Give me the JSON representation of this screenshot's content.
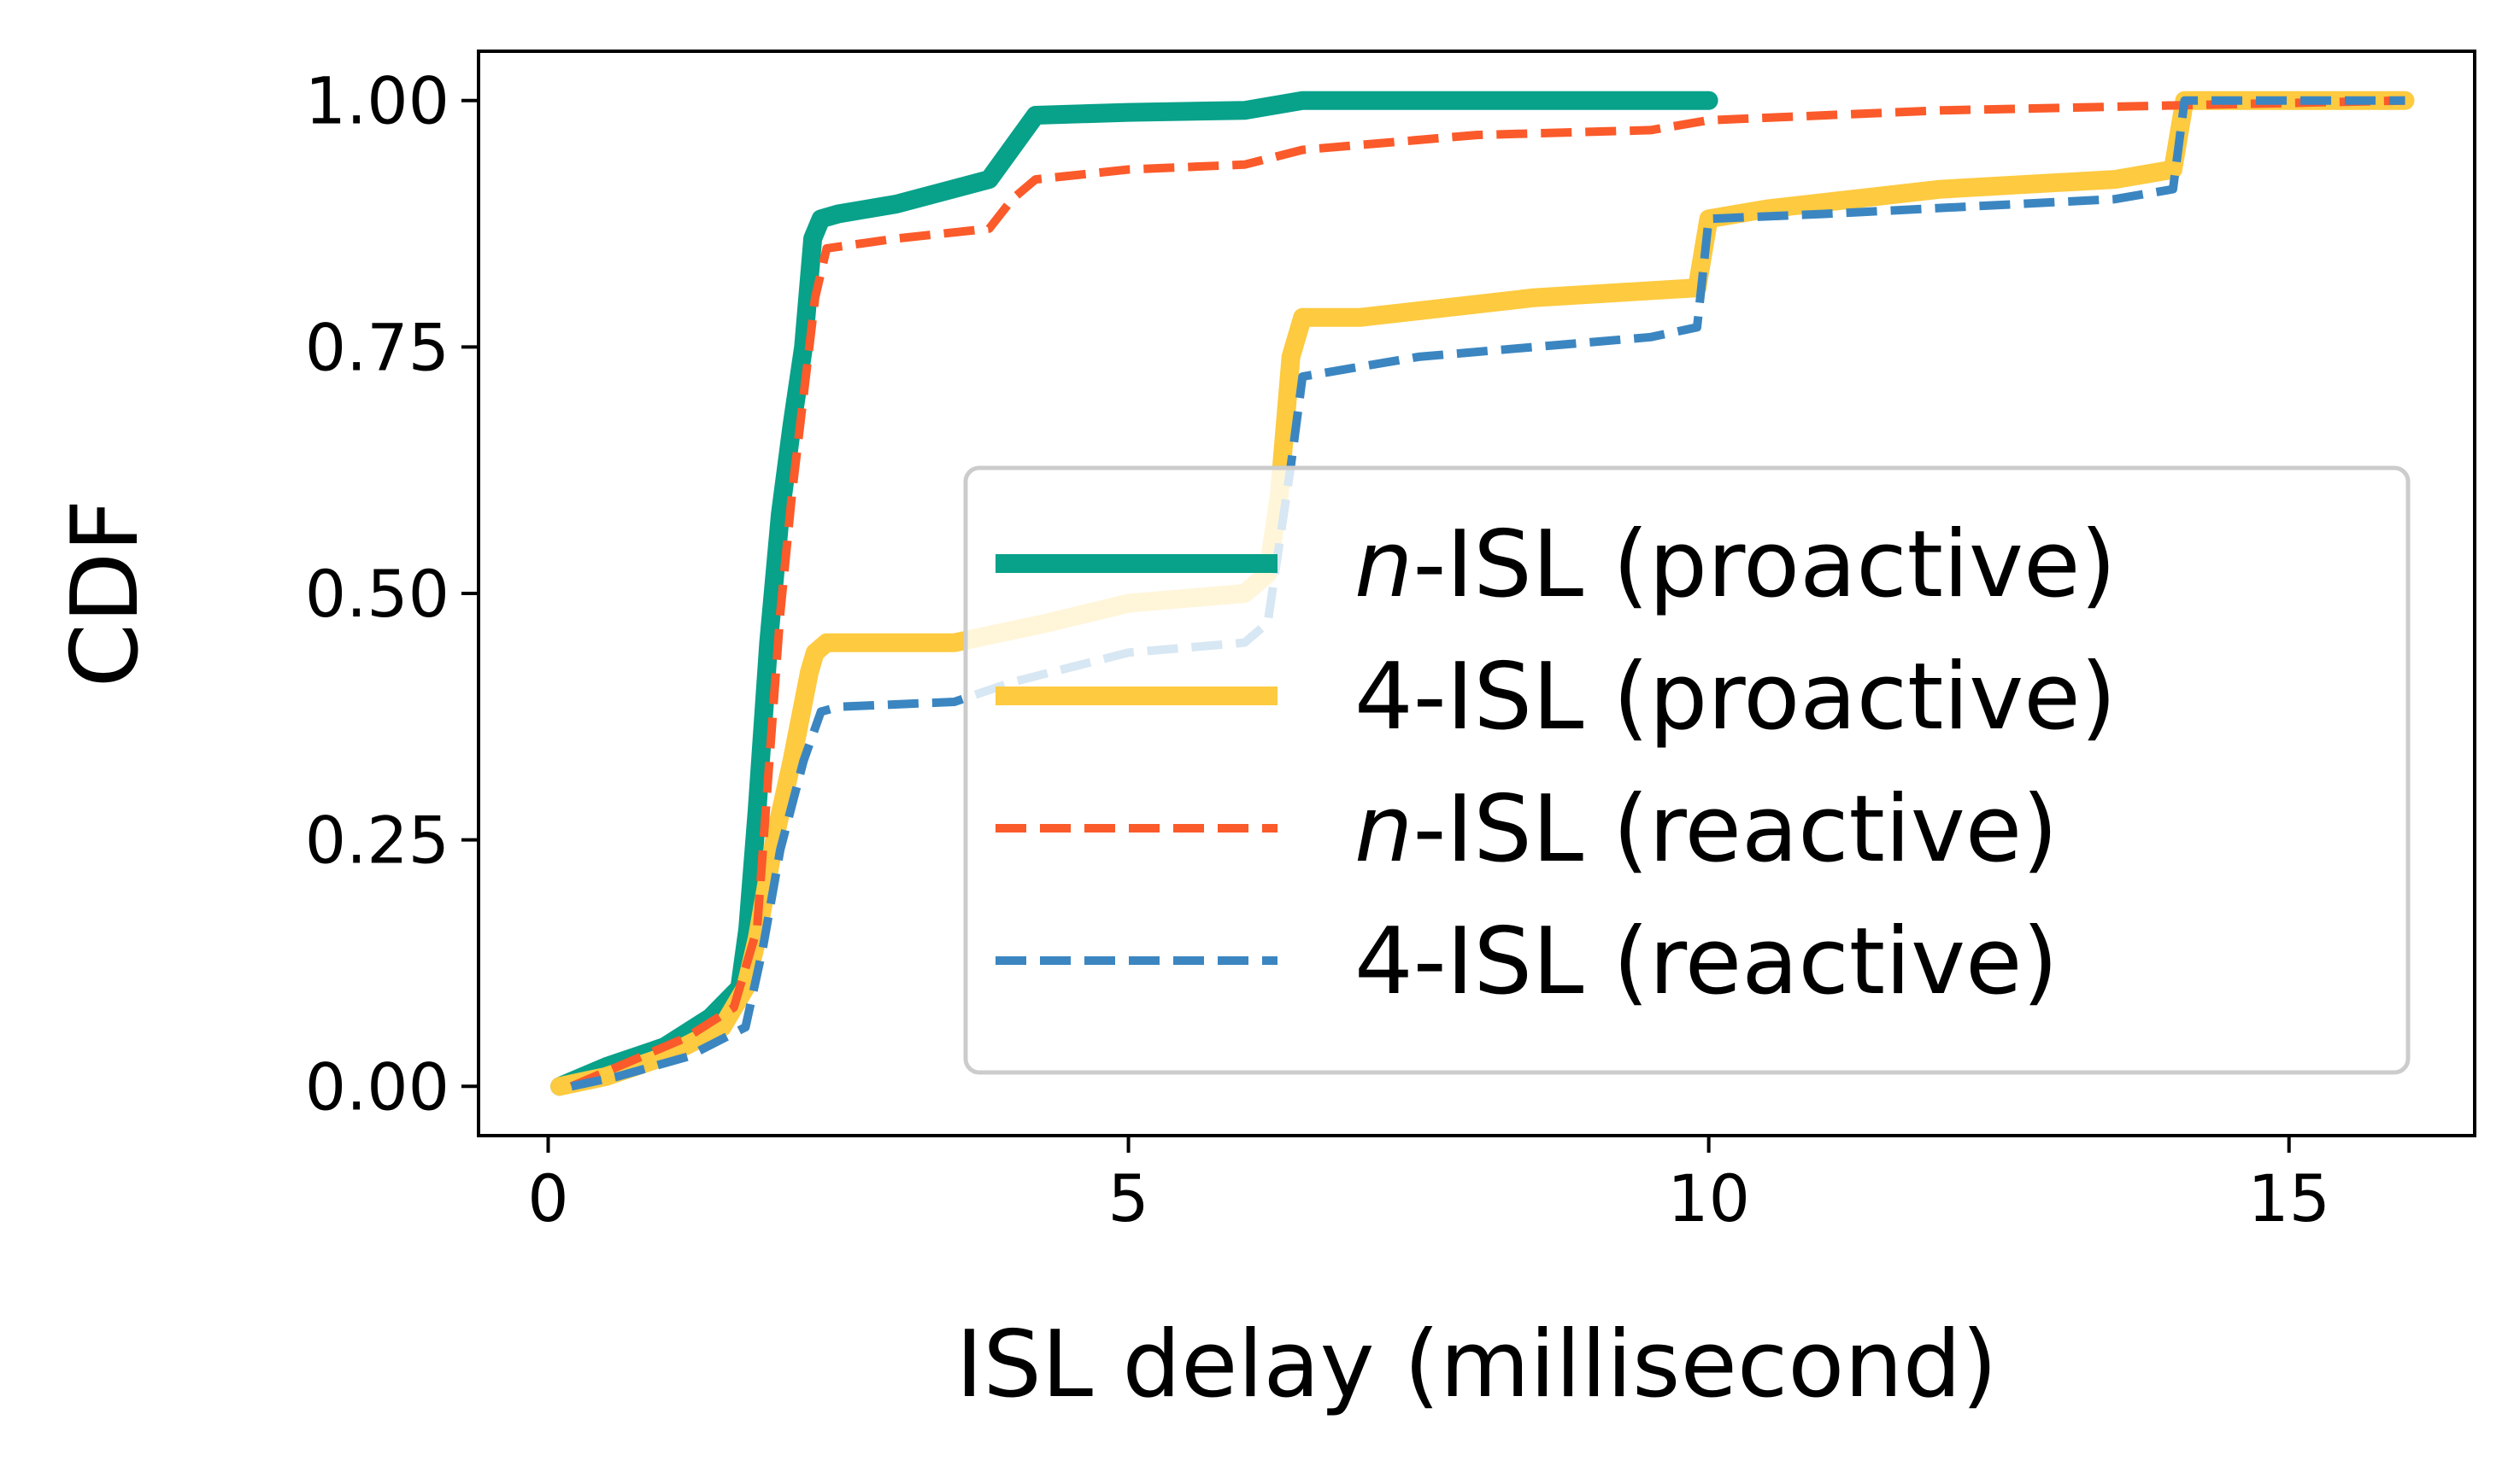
{
  "chart_data": {
    "type": "line",
    "title": "",
    "xlabel": "ISL delay (millisecond)",
    "ylabel": "CDF",
    "xlim": [
      -0.6,
      16.6
    ],
    "ylim": [
      -0.05,
      1.05
    ],
    "x_ticks": [
      0,
      5,
      10,
      15
    ],
    "x_tick_labels": [
      "0",
      "5",
      "10",
      "15"
    ],
    "y_ticks": [
      0.0,
      0.25,
      0.5,
      0.75,
      1.0
    ],
    "y_tick_labels": [
      "0.00",
      "0.25",
      "0.50",
      "0.75",
      "1.00"
    ],
    "grid": false,
    "legend_position": "center-right",
    "series": [
      {
        "name_prefix": "n",
        "name_suffix": "-ISL (proactive)",
        "color": "#08a18a",
        "style": "solid",
        "width": 22,
        "x": [
          0.1,
          0.5,
          1.0,
          1.4,
          1.65,
          1.72,
          1.8,
          1.9,
          2.0,
          2.1,
          2.2,
          2.28,
          2.35,
          2.5,
          3.0,
          3.8,
          4.2,
          5.0,
          6.0,
          6.5,
          8.0,
          10.0
        ],
        "y": [
          0.0,
          0.02,
          0.04,
          0.07,
          0.1,
          0.16,
          0.28,
          0.45,
          0.58,
          0.67,
          0.75,
          0.86,
          0.88,
          0.885,
          0.895,
          0.92,
          0.985,
          0.988,
          0.99,
          1.0,
          1.0,
          1.0
        ]
      },
      {
        "name_prefix": "",
        "name_suffix": "4-ISL (proactive)",
        "color": "#fdca40",
        "style": "solid",
        "width": 22,
        "x": [
          0.1,
          0.5,
          1.0,
          1.5,
          1.7,
          1.8,
          1.95,
          2.1,
          2.25,
          2.3,
          2.4,
          3.5,
          4.3,
          5.0,
          6.0,
          6.2,
          6.3,
          6.4,
          6.5,
          7.0,
          8.5,
          9.9,
          10.0,
          10.5,
          12.0,
          13.5,
          14.0,
          14.1,
          15.0,
          16.0
        ],
        "y": [
          0.0,
          0.01,
          0.03,
          0.06,
          0.1,
          0.15,
          0.25,
          0.33,
          0.42,
          0.44,
          0.45,
          0.45,
          0.47,
          0.49,
          0.5,
          0.52,
          0.6,
          0.74,
          0.78,
          0.78,
          0.8,
          0.81,
          0.88,
          0.89,
          0.91,
          0.92,
          0.93,
          1.0,
          1.0,
          1.0
        ]
      },
      {
        "name_prefix": "n",
        "name_suffix": "-ISL (reactive)",
        "color": "#fb5a2a",
        "style": "dashed",
        "width": 10,
        "x": [
          0.2,
          0.6,
          1.2,
          1.6,
          1.8,
          1.9,
          2.0,
          2.1,
          2.2,
          2.3,
          2.4,
          3.0,
          3.8,
          4.0,
          4.2,
          5.0,
          6.0,
          6.5,
          8.0,
          9.5,
          10.0,
          12.0,
          14.0,
          16.0
        ],
        "y": [
          0.0,
          0.02,
          0.05,
          0.08,
          0.16,
          0.32,
          0.48,
          0.6,
          0.7,
          0.8,
          0.85,
          0.86,
          0.87,
          0.9,
          0.92,
          0.93,
          0.935,
          0.95,
          0.965,
          0.97,
          0.98,
          0.99,
          0.995,
          1.0
        ]
      },
      {
        "name_prefix": "",
        "name_suffix": "4-ISL (reactive)",
        "color": "#3b86c1",
        "style": "dashed",
        "width": 10,
        "x": [
          0.2,
          0.6,
          1.2,
          1.7,
          1.85,
          2.0,
          2.2,
          2.35,
          2.5,
          3.5,
          4.0,
          5.0,
          6.0,
          6.2,
          6.3,
          6.4,
          6.5,
          7.5,
          9.5,
          9.9,
          10.0,
          11.0,
          13.5,
          14.0,
          14.1,
          16.0
        ],
        "y": [
          0.0,
          0.01,
          0.03,
          0.06,
          0.14,
          0.24,
          0.33,
          0.38,
          0.385,
          0.39,
          0.41,
          0.44,
          0.45,
          0.47,
          0.55,
          0.63,
          0.72,
          0.74,
          0.76,
          0.77,
          0.88,
          0.885,
          0.9,
          0.91,
          1.0,
          1.0
        ]
      }
    ]
  }
}
